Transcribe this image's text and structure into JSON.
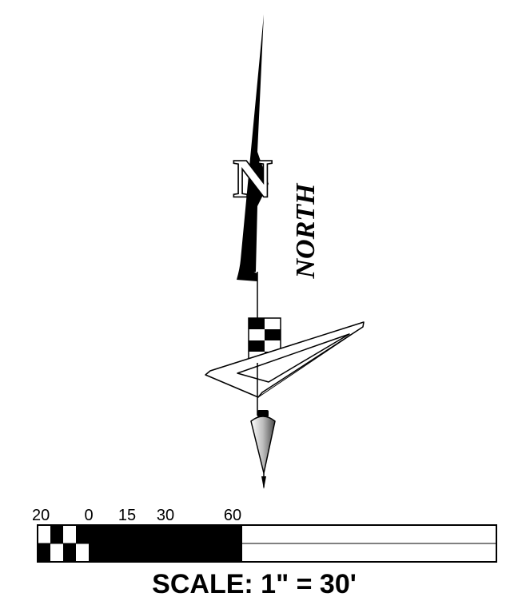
{
  "north_arrow": {
    "letter": "N",
    "word": "NORTH"
  },
  "scale_bar": {
    "ticks": [
      "20",
      "0",
      "15",
      "30",
      "60"
    ],
    "caption": "SCALE:  1\" = 30'"
  },
  "colors": {
    "ink": "#000000",
    "paper": "#ffffff"
  }
}
